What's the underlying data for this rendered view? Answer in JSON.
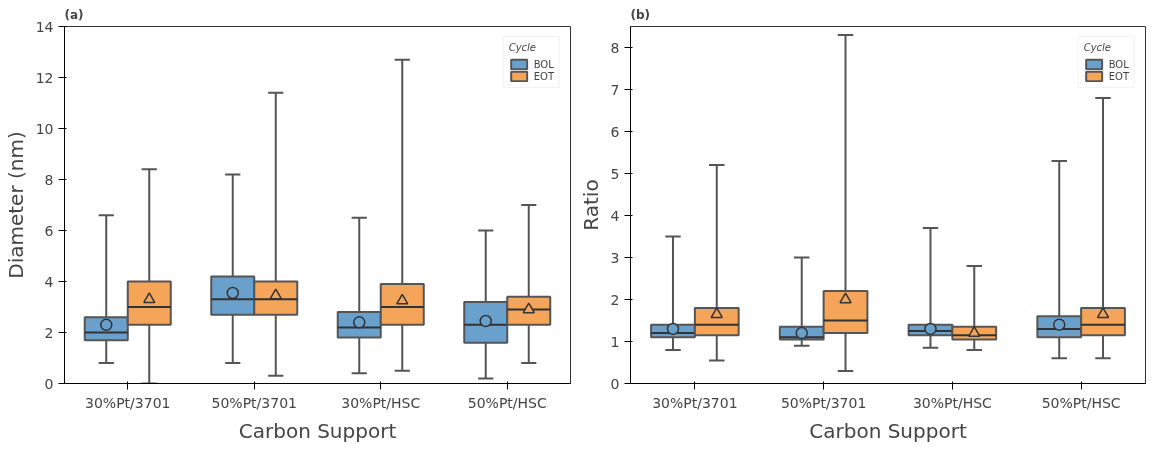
{
  "chart_data": [
    {
      "type": "box",
      "title": "(a)",
      "xlabel": "Carbon Support",
      "ylabel": "Diameter (nm)",
      "legend_title": "Cycle",
      "legend": "top right",
      "grid": false,
      "categories": [
        "30%Pt/3701",
        "50%Pt/3701",
        "30%Pt/HSC",
        "50%Pt/HSC"
      ],
      "ylim": [
        0,
        14
      ],
      "yticks": [
        0,
        2,
        4,
        6,
        8,
        10,
        12,
        14
      ],
      "series": [
        {
          "name": "BOL",
          "color": "#6aa0cc",
          "marker": "circle",
          "boxes": [
            {
              "low": 0.8,
              "q1": 1.7,
              "median": 2.0,
              "q3": 2.6,
              "high": 6.6,
              "mean": 2.3
            },
            {
              "low": 0.8,
              "q1": 2.7,
              "median": 3.3,
              "q3": 4.2,
              "high": 8.2,
              "mean": 3.55
            },
            {
              "low": 0.4,
              "q1": 1.8,
              "median": 2.2,
              "q3": 2.8,
              "high": 6.5,
              "mean": 2.4
            },
            {
              "low": 0.2,
              "q1": 1.6,
              "median": 2.3,
              "q3": 3.2,
              "high": 6.0,
              "mean": 2.45
            }
          ]
        },
        {
          "name": "EOT",
          "color": "#f5a55a",
          "marker": "triangle",
          "boxes": [
            {
              "low": 0.0,
              "q1": 2.3,
              "median": 3.0,
              "q3": 4.0,
              "high": 8.4,
              "mean": 3.3
            },
            {
              "low": 0.3,
              "q1": 2.7,
              "median": 3.3,
              "q3": 4.0,
              "high": 11.4,
              "mean": 3.45
            },
            {
              "low": 0.5,
              "q1": 2.3,
              "median": 3.0,
              "q3": 3.9,
              "high": 12.7,
              "mean": 3.25
            },
            {
              "low": 0.8,
              "q1": 2.3,
              "median": 2.9,
              "q3": 3.4,
              "high": 7.0,
              "mean": 2.9
            }
          ]
        }
      ]
    },
    {
      "type": "box",
      "title": "(b)",
      "xlabel": "Carbon Support",
      "ylabel": "Ratio",
      "legend_title": "Cycle",
      "legend": "top right",
      "grid": false,
      "categories": [
        "30%Pt/3701",
        "50%Pt/3701",
        "30%Pt/HSC",
        "50%Pt/HSC"
      ],
      "ylim": [
        0,
        8.5
      ],
      "yticks": [
        0,
        1,
        2,
        3,
        4,
        5,
        6,
        7,
        8
      ],
      "series": [
        {
          "name": "BOL",
          "color": "#6aa0cc",
          "marker": "circle",
          "boxes": [
            {
              "low": 0.8,
              "q1": 1.1,
              "median": 1.2,
              "q3": 1.4,
              "high": 3.5,
              "mean": 1.3
            },
            {
              "low": 0.9,
              "q1": 1.05,
              "median": 1.1,
              "q3": 1.35,
              "high": 3.0,
              "mean": 1.2
            },
            {
              "low": 0.85,
              "q1": 1.15,
              "median": 1.25,
              "q3": 1.4,
              "high": 3.7,
              "mean": 1.3
            },
            {
              "low": 0.6,
              "q1": 1.1,
              "median": 1.3,
              "q3": 1.6,
              "high": 5.3,
              "mean": 1.4
            }
          ]
        },
        {
          "name": "EOT",
          "color": "#f5a55a",
          "marker": "triangle",
          "boxes": [
            {
              "low": 0.55,
              "q1": 1.15,
              "median": 1.4,
              "q3": 1.8,
              "high": 5.2,
              "mean": 1.65
            },
            {
              "low": 0.3,
              "q1": 1.2,
              "median": 1.5,
              "q3": 2.2,
              "high": 8.3,
              "mean": 2.0
            },
            {
              "low": 0.8,
              "q1": 1.05,
              "median": 1.15,
              "q3": 1.35,
              "high": 2.8,
              "mean": 1.2
            },
            {
              "low": 0.6,
              "q1": 1.15,
              "median": 1.4,
              "q3": 1.8,
              "high": 6.8,
              "mean": 1.65
            }
          ]
        }
      ]
    }
  ]
}
